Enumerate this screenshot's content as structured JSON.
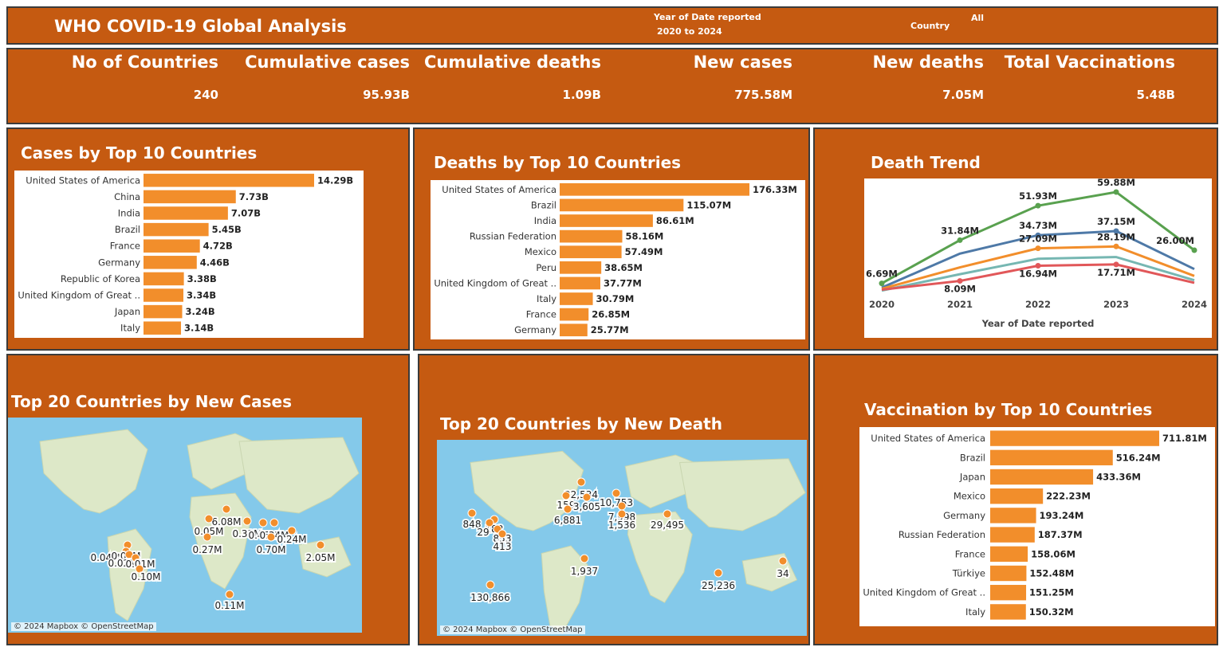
{
  "header": {
    "title": "WHO COVID-19 Global Analysis",
    "year_filter_label": "Year of Date reported",
    "year_filter_value": "2020 to 2024",
    "country_filter_label": "Country",
    "country_filter_value": "All"
  },
  "kpis": [
    {
      "label": "No of Countries",
      "value": "240"
    },
    {
      "label": "Cumulative cases",
      "value": "95.93B"
    },
    {
      "label": "Cumulative deaths",
      "value": "1.09B"
    },
    {
      "label": "New cases",
      "value": "775.58M"
    },
    {
      "label": "New deaths",
      "value": "7.05M"
    },
    {
      "label": "Total Vaccinations",
      "value": "5.48B"
    }
  ],
  "colors": {
    "panel": "#c55a11",
    "bar": "#f28e2b",
    "series": [
      "#59a14f",
      "#4e79a7",
      "#f28e2b",
      "#76b7b2",
      "#e15759"
    ]
  },
  "chart_data": [
    {
      "type": "bar",
      "title": "Cases by Top 10 Countries",
      "categories": [
        "United States of America",
        "China",
        "India",
        "Brazil",
        "France",
        "Germany",
        "Republic of Korea",
        "United Kingdom of Great ..",
        "Japan",
        "Italy"
      ],
      "values": [
        14.29,
        7.73,
        7.07,
        5.45,
        4.72,
        4.46,
        3.38,
        3.34,
        3.24,
        3.14
      ],
      "labels": [
        "14.29B",
        "7.73B",
        "7.07B",
        "5.45B",
        "4.72B",
        "4.46B",
        "3.38B",
        "3.34B",
        "3.24B",
        "3.14B"
      ],
      "orientation": "horizontal"
    },
    {
      "type": "bar",
      "title": "Deaths by Top 10 Countries",
      "categories": [
        "United States of America",
        "Brazil",
        "India",
        "Russian Federation",
        "Mexico",
        "Peru",
        "United Kingdom of Great ..",
        "Italy",
        "France",
        "Germany"
      ],
      "values": [
        176.33,
        115.07,
        86.61,
        58.16,
        57.49,
        38.65,
        37.77,
        30.79,
        26.85,
        25.77
      ],
      "labels": [
        "176.33M",
        "115.07M",
        "86.61M",
        "58.16M",
        "57.49M",
        "38.65M",
        "37.77M",
        "30.79M",
        "26.85M",
        "25.77M"
      ],
      "orientation": "horizontal"
    },
    {
      "type": "line",
      "title": "Death Trend",
      "xlabel": "Year of Date reported",
      "x": [
        "2020",
        "2021",
        "2022",
        "2023",
        "2024"
      ],
      "ylim": [
        0,
        65
      ],
      "series": [
        {
          "values": [
            6.69,
            31.84,
            51.93,
            59.88,
            26.0
          ],
          "labels": [
            "6.69M",
            "31.84M",
            "51.93M",
            "59.88M",
            "26.00M"
          ]
        },
        {
          "values": [
            4.2,
            24.0,
            34.73,
            37.15,
            15.0
          ],
          "labels": [
            "",
            "",
            "34.73M",
            "37.15M",
            ""
          ]
        },
        {
          "values": [
            3.5,
            16.0,
            27.09,
            28.19,
            11.0
          ],
          "labels": [
            "",
            "",
            "27.09M",
            "28.19M",
            ""
          ]
        },
        {
          "values": [
            2.5,
            12.0,
            21.0,
            22.0,
            8.5
          ],
          "labels": [
            "",
            "",
            "",
            "",
            ""
          ]
        },
        {
          "values": [
            3.0,
            8.09,
            16.94,
            17.71,
            7.0
          ],
          "labels": [
            "",
            "8.09M",
            "16.94M",
            "17.71M",
            ""
          ]
        }
      ]
    },
    {
      "type": "bar",
      "title": "Vaccination by Top 10 Countries",
      "categories": [
        "United States of America",
        "Brazil",
        "Japan",
        "Mexico",
        "Germany",
        "Russian Federation",
        "France",
        "Türkiye",
        "United Kingdom of Great ..",
        "Italy"
      ],
      "values": [
        711.81,
        516.24,
        433.36,
        222.23,
        193.24,
        187.37,
        158.06,
        152.48,
        151.25,
        150.32
      ],
      "labels": [
        "711.81M",
        "516.24M",
        "433.36M",
        "222.23M",
        "193.24M",
        "187.37M",
        "158.06M",
        "152.48M",
        "151.25M",
        "150.32M"
      ],
      "orientation": "horizontal"
    }
  ],
  "maps": [
    {
      "title": "Top 20 Countries by New Cases",
      "attribution": "© 2024 Mapbox © OpenStreetMap",
      "labels": [
        "6.08M",
        "0.05M",
        "0.33M",
        "0.45M",
        "0.34M",
        "0.24M",
        "0.27M",
        "0.70M",
        "2.05M",
        "0.04M",
        "0.00M",
        "0.02M",
        "0.01M",
        "0.10M",
        "0.11M"
      ]
    },
    {
      "title": "Top 20 Countries by New Death",
      "attribution": "© 2024 Mapbox © OpenStreetMap",
      "labels": [
        "22,534",
        "159",
        "3,605",
        "10,753",
        "6,881",
        "7,998",
        "1,536",
        "29,495",
        "848",
        "182",
        "29",
        "853",
        "413",
        "1,937",
        "130,866",
        "25,236",
        "34"
      ]
    }
  ]
}
